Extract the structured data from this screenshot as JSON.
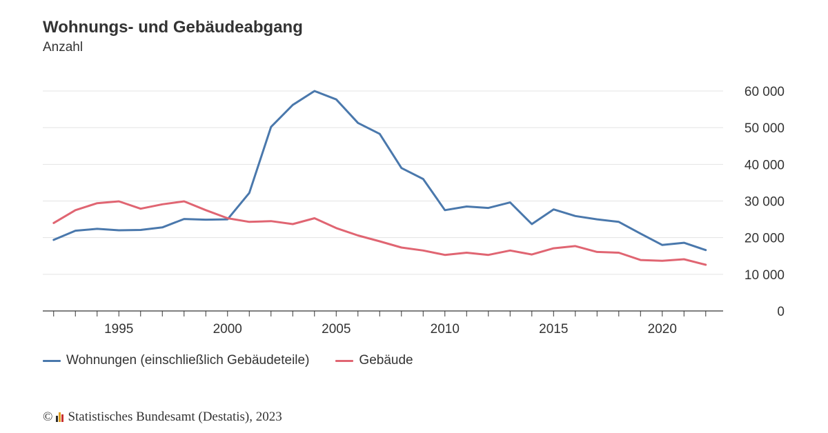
{
  "colors": {
    "wohnungen": "#4a78ac",
    "gebaeude": "#e06572",
    "grid": "#e3e3e3",
    "axis": "#333333"
  },
  "header": {
    "title": "Wohnungs- und Gebäudeabgang",
    "subtitle": "Anzahl"
  },
  "legend": {
    "items": [
      {
        "label": "Wohnungen (einschließlich Gebäudeteile)",
        "color": "#4a78ac"
      },
      {
        "label": "Gebäude",
        "color": "#e06572"
      }
    ]
  },
  "footer": {
    "copyright": "©",
    "logo_icon": "destatis-logo-icon",
    "text": "Statistisches Bundesamt (Destatis), 2023"
  },
  "chart_data": {
    "type": "line",
    "title": "Wohnungs- und Gebäudeabgang",
    "subtitle": "Anzahl",
    "x": [
      1992,
      1993,
      1994,
      1995,
      1996,
      1997,
      1998,
      1999,
      2000,
      2001,
      2002,
      2003,
      2004,
      2005,
      2006,
      2007,
      2008,
      2009,
      2010,
      2011,
      2012,
      2013,
      2014,
      2015,
      2016,
      2017,
      2018,
      2019,
      2020,
      2021,
      2022
    ],
    "x_ticks": [
      1995,
      2000,
      2005,
      2010,
      2015,
      2020
    ],
    "x_tick_labels": [
      "1995",
      "2000",
      "2005",
      "2010",
      "2015",
      "2020"
    ],
    "xlim": [
      1991.5,
      2022.8
    ],
    "ylim": [
      0,
      60000
    ],
    "y_ticks": [
      0,
      10000,
      20000,
      30000,
      40000,
      50000,
      60000
    ],
    "y_tick_labels": [
      "0",
      "10 000",
      "20 000",
      "30 000",
      "40 000",
      "50 000",
      "60 000"
    ],
    "y_axis_side": "right",
    "grid": true,
    "legend_position": "bottom-left",
    "series": [
      {
        "name": "Wohnungen (einschließlich Gebäudeteile)",
        "color": "#4a78ac",
        "values": [
          19400,
          21900,
          22400,
          22000,
          22100,
          22800,
          25100,
          24900,
          25000,
          32200,
          50200,
          56200,
          60000,
          57700,
          51300,
          48300,
          39000,
          36000,
          27500,
          28500,
          28100,
          29600,
          23700,
          27700,
          25900,
          25000,
          24300,
          21100,
          18000,
          18600,
          16600
        ]
      },
      {
        "name": "Gebäude",
        "color": "#e06572",
        "values": [
          24000,
          27500,
          29400,
          29900,
          27900,
          29100,
          29900,
          27500,
          25300,
          24300,
          24500,
          23700,
          25300,
          22600,
          20600,
          19000,
          17300,
          16500,
          15300,
          15900,
          15300,
          16500,
          15400,
          17100,
          17700,
          16100,
          15900,
          13900,
          13700,
          14100,
          12600
        ]
      }
    ]
  }
}
